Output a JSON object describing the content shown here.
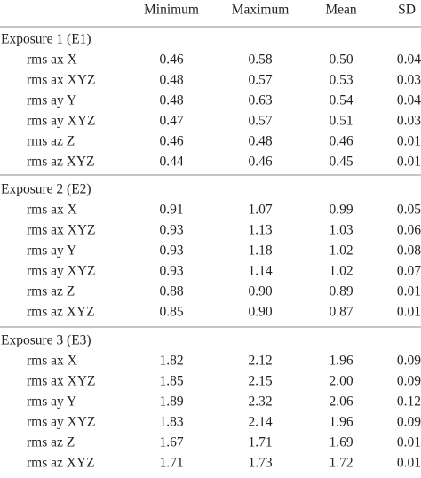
{
  "table": {
    "columns": [
      "Minimum",
      "Maximum",
      "Mean",
      "SD"
    ],
    "groups": [
      {
        "title": "Exposure 1 (E1)",
        "rows": [
          [
            "rms ax X",
            "0.46",
            "0.58",
            "0.50",
            "0.04"
          ],
          [
            "rms ax XYZ",
            "0.48",
            "0.57",
            "0.53",
            "0.03"
          ],
          [
            "rms ay Y",
            "0.48",
            "0.63",
            "0.54",
            "0.04"
          ],
          [
            "rms ay XYZ",
            "0.47",
            "0.57",
            "0.51",
            "0.03"
          ],
          [
            "rms az Z",
            "0.46",
            "0.48",
            "0.46",
            "0.01"
          ],
          [
            "rms az XYZ",
            "0.44",
            "0.46",
            "0.45",
            "0.01"
          ]
        ]
      },
      {
        "title": "Exposure 2 (E2)",
        "rows": [
          [
            "rms ax X",
            "0.91",
            "1.07",
            "0.99",
            "0.05"
          ],
          [
            "rms ax XYZ",
            "0.93",
            "1.13",
            "1.03",
            "0.06"
          ],
          [
            "rms ay Y",
            "0.93",
            "1.18",
            "1.02",
            "0.08"
          ],
          [
            "rms ay XYZ",
            "0.93",
            "1.14",
            "1.02",
            "0.07"
          ],
          [
            "rms az Z",
            "0.88",
            "0.90",
            "0.89",
            "0.01"
          ],
          [
            "rms az XYZ",
            "0.85",
            "0.90",
            "0.87",
            "0.01"
          ]
        ]
      },
      {
        "title": "Exposure 3 (E3)",
        "rows": [
          [
            "rms ax X",
            "1.82",
            "2.12",
            "1.96",
            "0.09"
          ],
          [
            "rms ax XYZ",
            "1.85",
            "2.15",
            "2.00",
            "0.09"
          ],
          [
            "rms ay Y",
            "1.89",
            "2.32",
            "2.06",
            "0.12"
          ],
          [
            "rms ay XYZ",
            "1.83",
            "2.14",
            "1.96",
            "0.09"
          ],
          [
            "rms az Z",
            "1.67",
            "1.71",
            "1.69",
            "0.01"
          ],
          [
            "rms az XYZ",
            "1.71",
            "1.73",
            "1.72",
            "0.01"
          ]
        ]
      }
    ]
  }
}
